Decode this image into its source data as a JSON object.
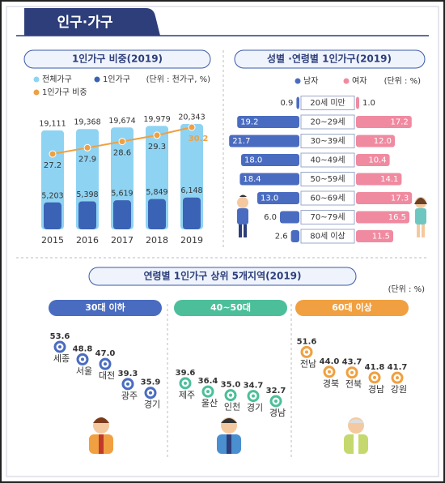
{
  "header": {
    "title": "인구·가구"
  },
  "chart_data": [
    {
      "type": "bar-line",
      "title": "1인가구 비중(2019)",
      "unit": "(단위 : 천가구, %)",
      "categories": [
        "2015",
        "2016",
        "2017",
        "2018",
        "2019"
      ],
      "series": [
        {
          "name": "전체가구",
          "color": "#8fd3f3",
          "values": [
            19111,
            19368,
            19674,
            19979,
            20343
          ],
          "value_labels": [
            "19,111",
            "19,368",
            "19,674",
            "19,979",
            "20,343"
          ]
        },
        {
          "name": "1인가구",
          "color": "#3b63b5",
          "values": [
            5203,
            5398,
            5619,
            5849,
            6148
          ],
          "value_labels": [
            "5,203",
            "5,398",
            "5,619",
            "5,849",
            "6,148"
          ]
        },
        {
          "name": "1인가구 비중",
          "color": "#f0a040",
          "axis": "y2",
          "values": [
            27.2,
            27.9,
            28.6,
            29.3,
            30.2
          ]
        }
      ]
    },
    {
      "type": "butterfly",
      "title": "성별 ·연령별 1인가구(2019)",
      "unit": "(단위 : %)",
      "categories": [
        "20세 미만",
        "20~29세",
        "30~39세",
        "40~49세",
        "50~59세",
        "60~69세",
        "70~79세",
        "80세 이상"
      ],
      "series": [
        {
          "name": "남자",
          "color": "#4a6cc0",
          "values": [
            0.9,
            19.2,
            21.7,
            18.0,
            18.4,
            13.0,
            6.0,
            2.6
          ],
          "value_labels": [
            "0.9",
            "19.2",
            "21.7",
            "18.0",
            "18.4",
            "13.0",
            "6.0",
            "2.6"
          ]
        },
        {
          "name": "여자",
          "color": "#f08aa0",
          "values": [
            1.0,
            17.2,
            12.0,
            10.4,
            14.1,
            17.3,
            16.5,
            11.5
          ],
          "value_labels": [
            "1.0",
            "17.2",
            "12.0",
            "10.4",
            "14.1",
            "17.3",
            "16.5",
            "11.5"
          ]
        }
      ]
    },
    {
      "type": "dot",
      "title": "연령별 1인가구 상위 5개지역(2019)",
      "unit": "(단위 : %)",
      "series": [
        {
          "name": "30대 이하",
          "color": "#4a6cc0",
          "categories": [
            "세종",
            "서울",
            "대전",
            "광주",
            "경기"
          ],
          "values": [
            53.6,
            48.8,
            47.0,
            39.3,
            35.9
          ],
          "value_labels": [
            "53.6",
            "48.8",
            "47.0",
            "39.3",
            "35.9"
          ]
        },
        {
          "name": "40~50대",
          "color": "#4cbf9a",
          "categories": [
            "제주",
            "울산",
            "인천",
            "경기",
            "경남"
          ],
          "values": [
            39.6,
            36.4,
            35.0,
            34.7,
            32.7
          ],
          "value_labels": [
            "39.6",
            "36.4",
            "35.0",
            "34.7",
            "32.7"
          ]
        },
        {
          "name": "60대 이상",
          "color": "#f0a040",
          "categories": [
            "전남",
            "경북",
            "전북",
            "경남",
            "강원"
          ],
          "values": [
            51.6,
            44.0,
            43.7,
            41.8,
            41.7
          ],
          "value_labels": [
            "51.6",
            "44.0",
            "43.7",
            "41.8",
            "41.7"
          ]
        }
      ]
    }
  ]
}
